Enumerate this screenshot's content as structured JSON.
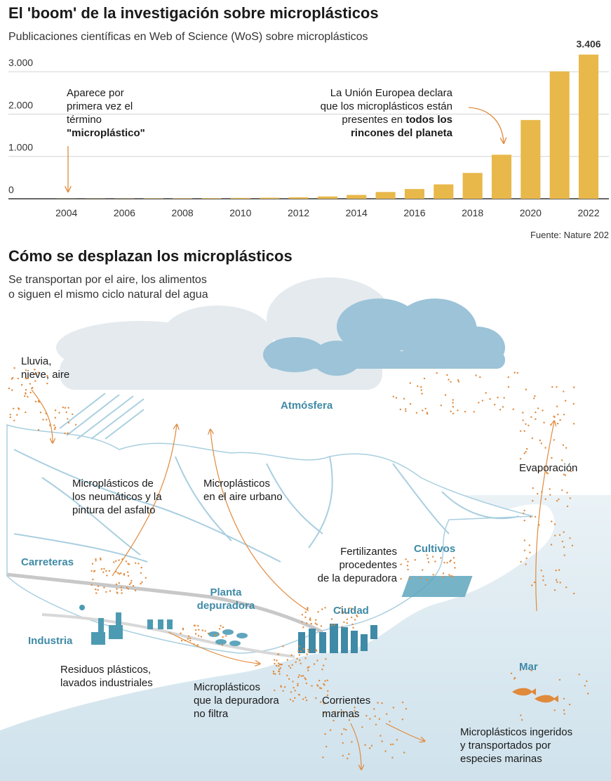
{
  "chart_data": {
    "type": "bar",
    "title": "El 'boom' de la investigación sobre microplásticos",
    "subtitle": "Publicaciones científicas en Web of Science (WoS) sobre microplásticos",
    "x": [
      2004,
      2005,
      2006,
      2007,
      2008,
      2009,
      2010,
      2011,
      2012,
      2013,
      2014,
      2015,
      2016,
      2017,
      2018,
      2019,
      2020,
      2021,
      2022
    ],
    "values": [
      3,
      4,
      5,
      8,
      10,
      14,
      20,
      25,
      35,
      55,
      90,
      160,
      230,
      340,
      610,
      1040,
      1860,
      3010,
      3406
    ],
    "value_labels": [
      null,
      null,
      null,
      null,
      null,
      null,
      null,
      null,
      null,
      null,
      null,
      null,
      null,
      null,
      null,
      null,
      null,
      null,
      "3.406"
    ],
    "color": "#e8b84a",
    "xlim": [
      2002,
      2022.7
    ],
    "xticks": [
      2004,
      2006,
      2008,
      2010,
      2012,
      2014,
      2016,
      2018,
      2020,
      2022
    ],
    "ylim": [
      0,
      3600
    ],
    "yticks": [
      0,
      {
        "value": 1000,
        "label": "1.000"
      },
      {
        "value": 2000,
        "label": "2.000"
      },
      {
        "value": 3000,
        "label": "3.000"
      }
    ],
    "grid": true,
    "annotations": [
      {
        "lines": [
          [
            {
              "text": "Aparece por",
              "bold": false
            }
          ],
          [
            {
              "text": "primera vez el",
              "bold": false
            }
          ],
          [
            {
              "text": "término",
              "bold": false
            }
          ],
          [
            {
              "text": "\"microplástico\"",
              "bold": true
            }
          ]
        ]
      },
      {
        "lines": [
          [
            {
              "text": "La Unión Europea declara",
              "bold": false
            }
          ],
          [
            {
              "text": "que los microplásticos están",
              "bold": false
            }
          ],
          [
            {
              "text": "presentes en ",
              "bold": false
            },
            {
              "text": "todos los",
              "bold": true
            }
          ],
          [
            {
              "text": "rincones del planeta",
              "bold": true
            }
          ]
        ]
      }
    ],
    "source": "Fuente: Nature 202"
  },
  "diagram": {
    "title": "Cómo se desplazan los microplásticos",
    "subtitle": [
      "Se transportan por el aire, los alimentos",
      "o siguen el mismo ciclo natural del agua"
    ],
    "labels": [
      {
        "lines": [
          "Lluvia,",
          "nieve, aire"
        ],
        "emphasis": false
      },
      {
        "lines": [
          "Atmósfera"
        ],
        "emphasis": true
      },
      {
        "lines": [
          "Microplásticos de",
          "los neumáticos y la",
          "pintura del asfalto"
        ],
        "emphasis": false
      },
      {
        "lines": [
          "Microplásticos",
          "en el aire urbano"
        ],
        "emphasis": false
      },
      {
        "lines": [
          "Evaporación"
        ],
        "emphasis": false
      },
      {
        "lines": [
          "Carreteras"
        ],
        "emphasis": true
      },
      {
        "lines": [
          "Fertilizantes",
          "procedentes",
          "de la depuradora"
        ],
        "emphasis": false
      },
      {
        "lines": [
          "Cultivos"
        ],
        "emphasis": true
      },
      {
        "lines": [
          "Planta",
          "depuradora"
        ],
        "emphasis": true
      },
      {
        "lines": [
          "Ciudad"
        ],
        "emphasis": true
      },
      {
        "lines": [
          "Industria"
        ],
        "emphasis": true
      },
      {
        "lines": [
          "Residuos plásticos,",
          "lavados industriales"
        ],
        "emphasis": false
      },
      {
        "lines": [
          "Microplásticos",
          "que la depuradora",
          "no filtra"
        ],
        "emphasis": false
      },
      {
        "lines": [
          "Corrientes",
          "marinas"
        ],
        "emphasis": false
      },
      {
        "lines": [
          "Mar"
        ],
        "emphasis": true
      },
      {
        "lines": [
          "Microplásticos ingeridos",
          "y  transportados por",
          "especies marinas"
        ],
        "emphasis": false
      }
    ]
  }
}
